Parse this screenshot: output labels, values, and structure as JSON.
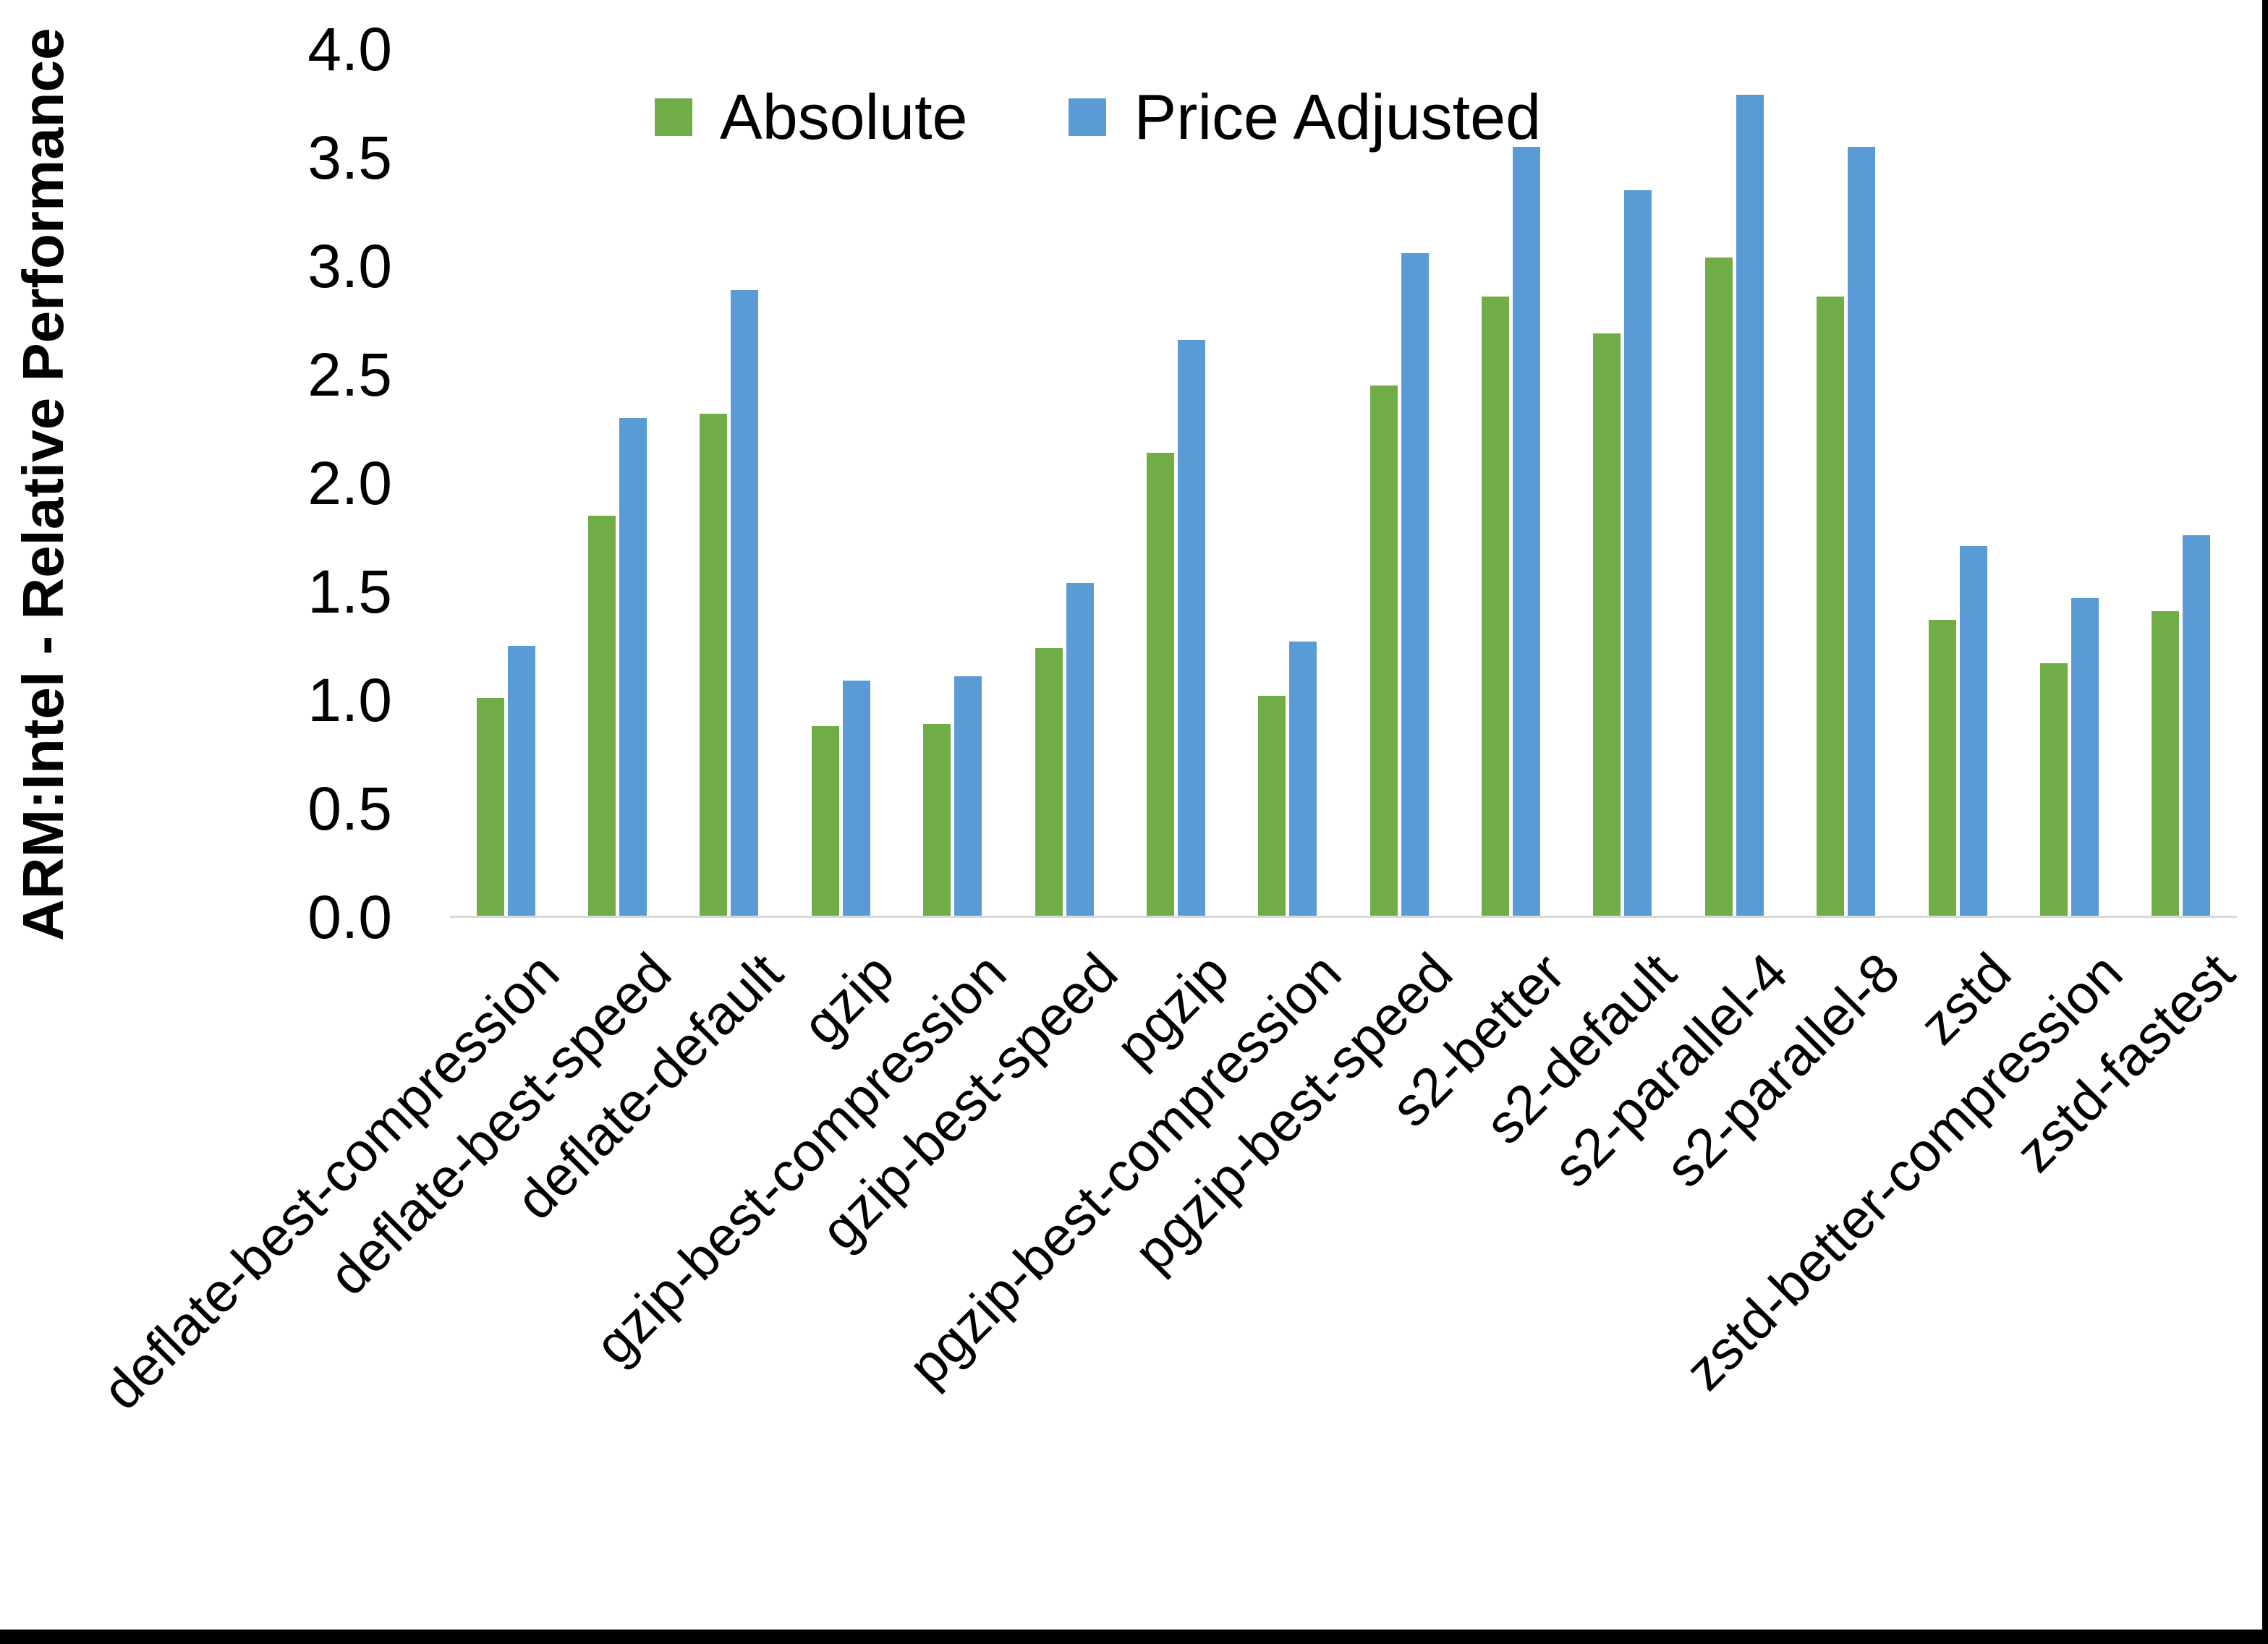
{
  "chart_data": {
    "type": "bar",
    "title": "",
    "xlabel": "",
    "ylabel": "ARM:Intel - Relative Performance",
    "ylim": [
      0.0,
      4.0
    ],
    "y_tick_step": 0.5,
    "y_tick_labels": [
      "0.0",
      "0.5",
      "1.0",
      "1.5",
      "2.0",
      "2.5",
      "3.0",
      "3.5",
      "4.0"
    ],
    "grid": false,
    "legend_position": "top-center",
    "categories": [
      "deflate-best-compression",
      "deflate-best-speed",
      "deflate-default",
      "gzip",
      "gzip-best-compression",
      "gzip-best-speed",
      "pgzip",
      "pgzip-best-compression",
      "pgzip-best-speed",
      "s2-better",
      "s2-default",
      "s2-parallel-4",
      "s2-parallel-8",
      "zstd",
      "zstd-better-compression",
      "zstd-fastest"
    ],
    "series": [
      {
        "name": "Absolute",
        "color": "#70AD47",
        "values": [
          1.01,
          1.85,
          2.32,
          0.88,
          0.89,
          1.24,
          2.14,
          1.02,
          2.45,
          2.86,
          2.69,
          3.04,
          2.86,
          1.37,
          1.17,
          1.41
        ]
      },
      {
        "name": "Price Adjusted",
        "color": "#5B9BD5",
        "values": [
          1.25,
          2.3,
          2.89,
          1.09,
          1.11,
          1.54,
          2.66,
          1.27,
          3.06,
          3.55,
          3.35,
          3.79,
          3.55,
          1.71,
          1.47,
          1.76
        ]
      }
    ]
  },
  "colors": {
    "background": "#FFFFFF",
    "axis_line": "#D9D9D9",
    "text": "#000000",
    "frame": "#000000"
  }
}
